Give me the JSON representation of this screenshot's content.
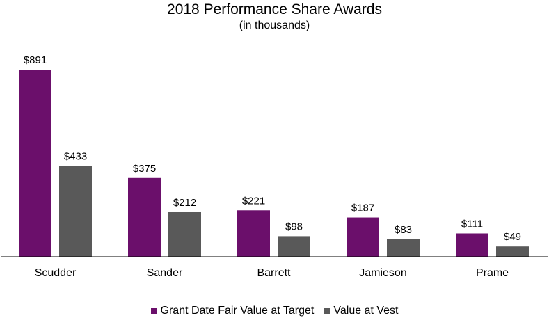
{
  "chart_data": {
    "type": "bar",
    "title": "2018 Performance Share Awards",
    "subtitle": "(in thousands)",
    "categories": [
      "Scudder",
      "Sander",
      "Barrett",
      "Jamieson",
      "Prame"
    ],
    "series": [
      {
        "name": "Grant Date Fair Value at Target",
        "color": "#6b0f6b",
        "values": [
          891,
          375,
          221,
          187,
          111
        ],
        "labels": [
          "$891",
          "$375",
          "$221",
          "$187",
          "$111"
        ]
      },
      {
        "name": "Value at Vest",
        "color": "#595959",
        "values": [
          433,
          212,
          98,
          83,
          49
        ],
        "labels": [
          "$433",
          "$212",
          "$98",
          "$83",
          "$49"
        ]
      }
    ],
    "ylim": [
      0,
      891
    ],
    "grid": false,
    "legend_position": "bottom"
  }
}
